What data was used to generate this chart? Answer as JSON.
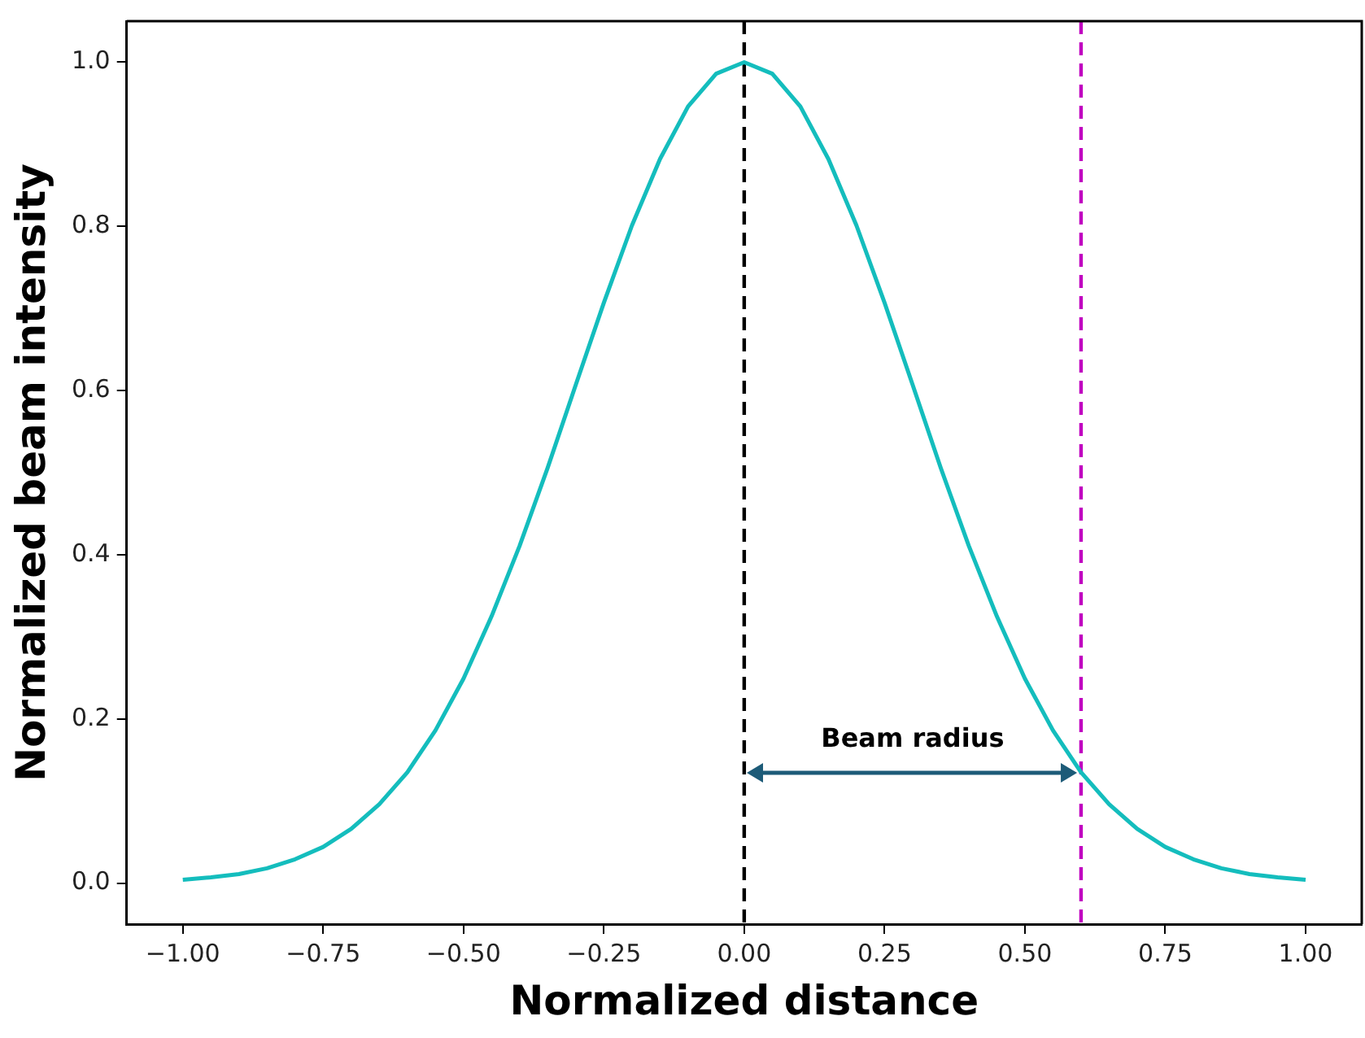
{
  "chart_data": {
    "type": "line",
    "xlabel": "Normalized distance",
    "ylabel": "Normalized beam intensity",
    "x": [
      -1,
      -0.95,
      -0.9,
      -0.85,
      -0.8,
      -0.75,
      -0.7,
      -0.65,
      -0.6,
      -0.55,
      -0.5,
      -0.45,
      -0.4,
      -0.35,
      -0.3,
      -0.25,
      -0.2,
      -0.15,
      -0.1,
      -0.05,
      0,
      0.05,
      0.1,
      0.15,
      0.2,
      0.25,
      0.3,
      0.35,
      0.4,
      0.45,
      0.5,
      0.55,
      0.6,
      0.65,
      0.7,
      0.75,
      0.8,
      0.85,
      0.9,
      0.95,
      1
    ],
    "series": [
      {
        "color": "#14bdbd",
        "values": [
          0.004,
          0.007,
          0.011,
          0.018,
          0.029,
          0.044,
          0.066,
          0.096,
          0.135,
          0.186,
          0.249,
          0.325,
          0.411,
          0.506,
          0.607,
          0.707,
          0.801,
          0.882,
          0.946,
          0.986,
          1,
          0.986,
          0.946,
          0.882,
          0.801,
          0.707,
          0.607,
          0.506,
          0.411,
          0.325,
          0.249,
          0.186,
          0.135,
          0.096,
          0.066,
          0.044,
          0.029,
          0.018,
          0.011,
          0.007,
          0.004
        ]
      }
    ],
    "xlim": [
      -1.1,
      1.1
    ],
    "ylim": [
      -0.05,
      1.05
    ],
    "xticks": [
      {
        "value": -1,
        "label": "−1.00"
      },
      {
        "value": -0.75,
        "label": "−0.75"
      },
      {
        "value": -0.5,
        "label": "−0.50"
      },
      {
        "value": -0.25,
        "label": "−0.25"
      },
      {
        "value": 0,
        "label": "0.00"
      },
      {
        "value": 0.25,
        "label": "0.25"
      },
      {
        "value": 0.5,
        "label": "0.50"
      },
      {
        "value": 0.75,
        "label": "0.75"
      },
      {
        "value": 1,
        "label": "1.00"
      }
    ],
    "yticks": [
      {
        "value": 0,
        "label": "0.0"
      },
      {
        "value": 0.2,
        "label": "0.2"
      },
      {
        "value": 0.4,
        "label": "0.4"
      },
      {
        "value": 0.6,
        "label": "0.6"
      },
      {
        "value": 0.8,
        "label": "0.8"
      },
      {
        "value": 1,
        "label": "1.0"
      }
    ],
    "ref_lines": [
      {
        "axis": "x",
        "value": 0,
        "color": "#000000",
        "line_style": "dashed"
      },
      {
        "axis": "x",
        "value": 0.6,
        "color": "#c000c0",
        "line_style": "dashed"
      }
    ],
    "annotations": [
      "Beam radius"
    ],
    "grid": false,
    "legend": false,
    "marker": "none",
    "line_style": "solid"
  }
}
